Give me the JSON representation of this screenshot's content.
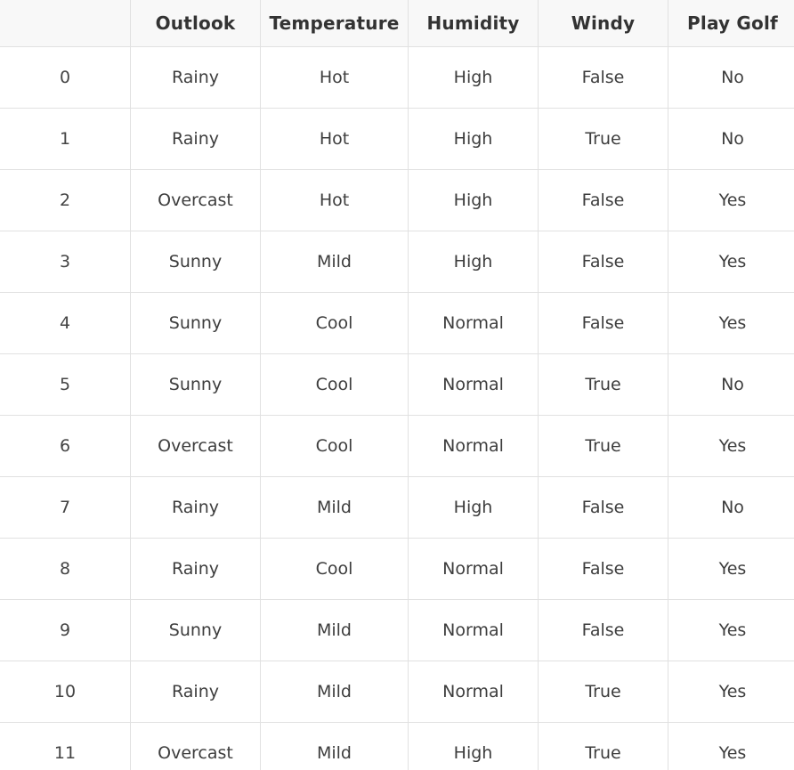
{
  "table": {
    "columns": [
      "",
      "Outlook",
      "Temperature",
      "Humidity",
      "Windy",
      "Play Golf"
    ],
    "rows": [
      [
        "0",
        "Rainy",
        "Hot",
        "High",
        "False",
        "No"
      ],
      [
        "1",
        "Rainy",
        "Hot",
        "High",
        "True",
        "No"
      ],
      [
        "2",
        "Overcast",
        "Hot",
        "High",
        "False",
        "Yes"
      ],
      [
        "3",
        "Sunny",
        "Mild",
        "High",
        "False",
        "Yes"
      ],
      [
        "4",
        "Sunny",
        "Cool",
        "Normal",
        "False",
        "Yes"
      ],
      [
        "5",
        "Sunny",
        "Cool",
        "Normal",
        "True",
        "No"
      ],
      [
        "6",
        "Overcast",
        "Cool",
        "Normal",
        "True",
        "Yes"
      ],
      [
        "7",
        "Rainy",
        "Mild",
        "High",
        "False",
        "No"
      ],
      [
        "8",
        "Rainy",
        "Cool",
        "Normal",
        "False",
        "Yes"
      ],
      [
        "9",
        "Sunny",
        "Mild",
        "Normal",
        "False",
        "Yes"
      ],
      [
        "10",
        "Rainy",
        "Mild",
        "Normal",
        "True",
        "Yes"
      ],
      [
        "11",
        "Overcast",
        "Mild",
        "High",
        "True",
        "Yes"
      ]
    ]
  },
  "colors": {
    "header_bg": "#f8f8f8",
    "border": "#e1e1e1",
    "text": "#3d3d3d"
  }
}
